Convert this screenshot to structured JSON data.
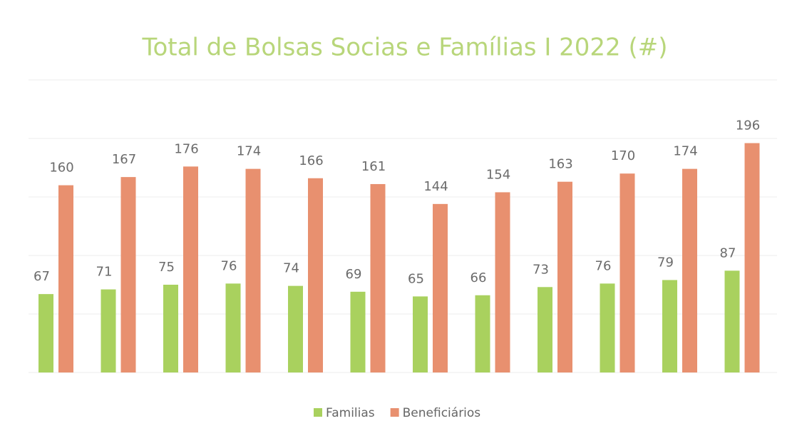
{
  "chart_data": {
    "type": "bar",
    "title": "Total de Bolsas Socias e Famílias I 2022 (#)",
    "categories": [
      null,
      null,
      null,
      null,
      null,
      null,
      null,
      null,
      null,
      null,
      null,
      null
    ],
    "series": [
      {
        "name": "Familias",
        "color": "#a9d15e",
        "values": [
          67,
          71,
          75,
          76,
          74,
          69,
          65,
          66,
          73,
          76,
          79,
          87
        ]
      },
      {
        "name": "Beneficiários",
        "color": "#e8906f",
        "values": [
          160,
          167,
          176,
          174,
          166,
          161,
          144,
          154,
          163,
          170,
          174,
          196
        ]
      }
    ],
    "ylim": [
      0,
      250
    ],
    "yticks": [
      0,
      50,
      100,
      150,
      200,
      250
    ],
    "grid": true,
    "legend": "bottom"
  }
}
